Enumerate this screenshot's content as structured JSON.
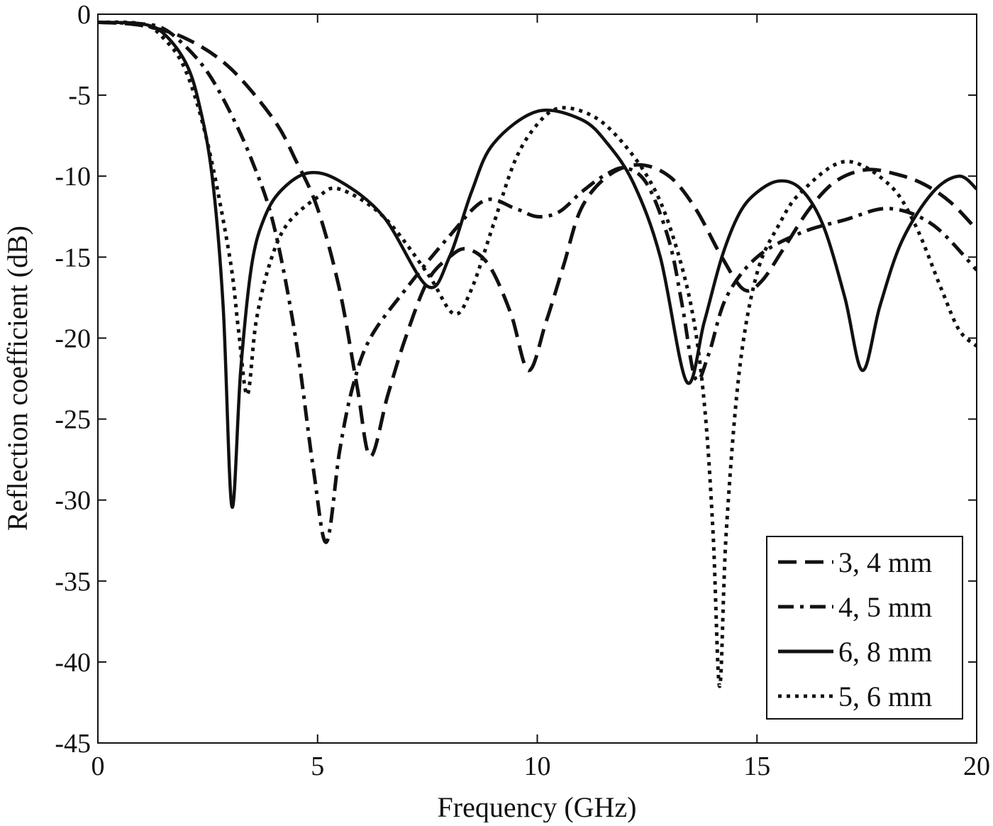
{
  "chart_data": {
    "type": "line",
    "title": "",
    "xlabel": "Frequency (GHz)",
    "ylabel": "Reflection coefficient (dB)",
    "xlim": [
      0,
      20
    ],
    "ylim": [
      -45,
      0
    ],
    "xticks": [
      0,
      5,
      10,
      15,
      20
    ],
    "yticks": [
      0,
      -5,
      -10,
      -15,
      -20,
      -25,
      -30,
      -35,
      -40,
      -45
    ],
    "grid": false,
    "legend_position": "bottom-right",
    "series": [
      {
        "name": "3, 4 mm",
        "style": "dashed",
        "color": "#111111",
        "x": [
          0,
          1,
          2,
          3,
          4,
          4.5,
          5,
          5.5,
          5.9,
          6.2,
          6.6,
          7,
          7.5,
          8,
          8.4,
          8.9,
          9.4,
          9.8,
          10.2,
          10.6,
          11,
          11.6,
          12.3,
          13,
          13.6,
          14.2,
          14.7,
          15.1,
          15.6,
          16.2,
          16.8,
          17.5,
          18.2,
          18.8,
          19.4,
          20
        ],
        "y": [
          -0.5,
          -0.7,
          -1.5,
          -3.3,
          -6.5,
          -9,
          -12,
          -17,
          -23,
          -27.3,
          -23.5,
          -20,
          -16.5,
          -15,
          -14.5,
          -15.5,
          -18.5,
          -22,
          -19,
          -15.5,
          -12,
          -10,
          -9.3,
          -10,
          -12,
          -15,
          -17,
          -16.5,
          -14.5,
          -12,
          -10.3,
          -9.6,
          -9.9,
          -10.5,
          -11.6,
          -13.3
        ]
      },
      {
        "name": "4, 5 mm",
        "style": "dashdot",
        "color": "#111111",
        "x": [
          0,
          1,
          1.5,
          2,
          2.5,
          3,
          3.5,
          4,
          4.5,
          4.9,
          5.2,
          5.5,
          5.8,
          6.2,
          7,
          8,
          8.8,
          9.5,
          10,
          10.5,
          11,
          11.5,
          12,
          12.5,
          13,
          13.3,
          13.6,
          13.9,
          14.3,
          15,
          16,
          17,
          18,
          19,
          20
        ],
        "y": [
          -0.5,
          -0.6,
          -0.9,
          -2,
          -3.6,
          -6,
          -9,
          -13,
          -20,
          -28,
          -32.6,
          -27,
          -23,
          -20,
          -17,
          -13.7,
          -11.5,
          -12,
          -12.5,
          -12.2,
          -11,
          -10,
          -9.5,
          -10.5,
          -14,
          -18,
          -22.5,
          -21,
          -17.5,
          -15,
          -13.5,
          -12.7,
          -12,
          -13,
          -15.8
        ]
      },
      {
        "name": "6, 8 mm",
        "style": "solid",
        "color": "#111111",
        "x": [
          0,
          1,
          1.5,
          2,
          2.3,
          2.6,
          2.85,
          3.05,
          3.25,
          3.5,
          3.8,
          4.2,
          4.8,
          5.5,
          6.5,
          7.5,
          8,
          8.5,
          9,
          10,
          11,
          11.6,
          12.2,
          12.8,
          13.4,
          13.8,
          14.2,
          14.6,
          15,
          15.5,
          16,
          16.5,
          17,
          17.4,
          17.8,
          18.3,
          19,
          19.6,
          20
        ],
        "y": [
          -0.5,
          -0.6,
          -1.2,
          -3,
          -5.5,
          -10,
          -18,
          -30.4,
          -22,
          -15.5,
          -12.5,
          -10.8,
          -9.8,
          -10.3,
          -12.5,
          -16.8,
          -15,
          -11,
          -8,
          -6,
          -6.5,
          -8,
          -10.5,
          -15,
          -22.7,
          -19,
          -15,
          -12.3,
          -11,
          -10.3,
          -10.8,
          -13,
          -17.5,
          -22,
          -18,
          -14,
          -11,
          -10,
          -10.8
        ]
      },
      {
        "name": "5, 6 mm",
        "style": "dotted",
        "color": "#111111",
        "x": [
          0,
          1,
          1.5,
          2,
          2.5,
          3,
          3.2,
          3.4,
          3.6,
          3.9,
          4.3,
          5,
          5.5,
          6.5,
          7.5,
          8.1,
          8.5,
          9,
          9.5,
          10,
          10.5,
          11.2,
          11.8,
          12.5,
          13,
          13.5,
          13.8,
          14,
          14.15,
          14.3,
          14.6,
          15,
          15.5,
          16,
          17,
          18,
          18.6,
          19.2,
          19.6,
          20
        ],
        "y": [
          -0.5,
          -0.6,
          -1.5,
          -3.5,
          -8,
          -15,
          -19.5,
          -23.5,
          -19,
          -15.5,
          -13,
          -11.3,
          -10.8,
          -12.5,
          -16,
          -18.5,
          -17,
          -13,
          -9,
          -6.8,
          -5.8,
          -6.2,
          -7.5,
          -10,
          -13,
          -18,
          -24,
          -32,
          -41.5,
          -32,
          -22,
          -16,
          -13,
          -11,
          -9.1,
          -10.5,
          -13,
          -17,
          -19.5,
          -20.5
        ]
      }
    ]
  }
}
